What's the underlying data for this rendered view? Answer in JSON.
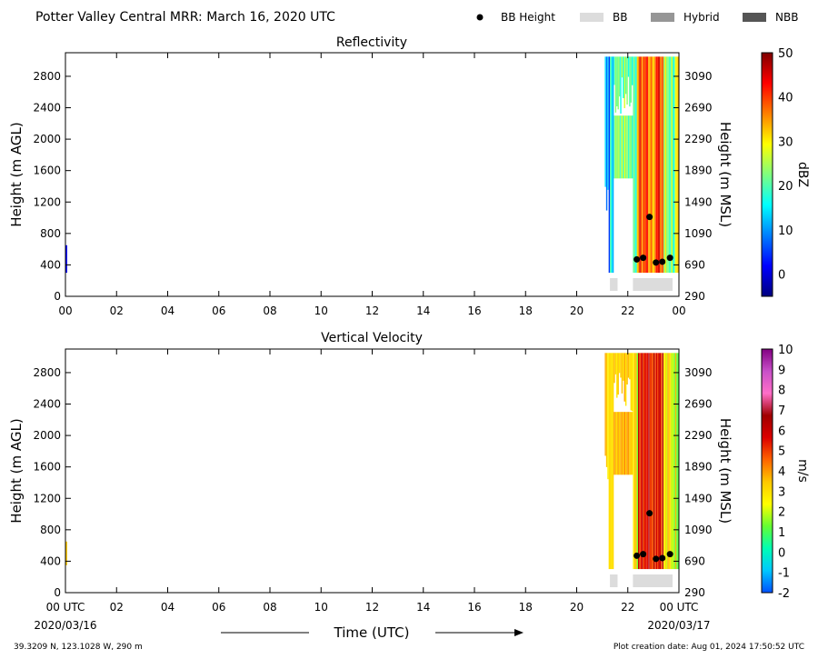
{
  "title": "Potter Valley Central MRR:  March 16, 2020 UTC",
  "legend": [
    {
      "name": "BB Height",
      "kind": "dot",
      "color": "#000000"
    },
    {
      "name": "BB",
      "kind": "box",
      "color": "#dcdcdc"
    },
    {
      "name": "Hybrid",
      "kind": "box",
      "color": "#969696"
    },
    {
      "name": "NBB",
      "kind": "box",
      "color": "#555555"
    }
  ],
  "footer": {
    "location": "39.3209 N, 123.1028 W, 290 m",
    "creation": "Plot creation date: Aug 01, 2024 17:50:52 UTC",
    "xlabel": "Time (UTC)",
    "start_date": "2020/03/16",
    "end_date": "2020/03/17"
  },
  "chart_data": [
    {
      "type": "heatmap",
      "title": "Reflectivity",
      "ylabel": "Height (m AGL)",
      "y2label": "Height (m MSL)",
      "xlim": [
        0,
        24
      ],
      "ylim": [
        0,
        3100
      ],
      "x_ticks": [
        "00",
        "02",
        "04",
        "06",
        "08",
        "10",
        "12",
        "14",
        "16",
        "18",
        "20",
        "22",
        "00"
      ],
      "x_ticks_last_label": "00",
      "y_ticks": [
        0,
        400,
        800,
        1200,
        1600,
        2000,
        2400,
        2800
      ],
      "y2_ticks": [
        290,
        690,
        1090,
        1490,
        1890,
        2290,
        2690,
        3090
      ],
      "colorbar": {
        "label": "dBZ",
        "range": [
          -5,
          50
        ],
        "ticks": [
          0,
          10,
          20,
          30,
          40,
          50
        ],
        "colors": [
          "#00007f",
          "#0000ff",
          "#007fff",
          "#00ffff",
          "#7fff7f",
          "#ffff00",
          "#ff7f00",
          "#ff0000",
          "#7f0000"
        ]
      },
      "bb_height_points": [
        {
          "time": 22.35,
          "height": 470
        },
        {
          "time": 22.6,
          "height": 490
        },
        {
          "time": 22.85,
          "height": 1010
        },
        {
          "time": 23.1,
          "height": 430
        },
        {
          "time": 23.35,
          "height": 440
        },
        {
          "time": 23.65,
          "height": 490
        }
      ],
      "bb_segments": [
        {
          "start": 21.3,
          "end": 21.6,
          "class": "BB"
        },
        {
          "start": 22.2,
          "end": 23.75,
          "class": "BB"
        }
      ]
    },
    {
      "type": "heatmap",
      "title": "Vertical Velocity",
      "ylabel": "Height (m AGL)",
      "y2label": "Height (m MSL)",
      "xlim": [
        0,
        24
      ],
      "ylim": [
        0,
        3100
      ],
      "x_ticks": [
        "00 UTC",
        "02",
        "04",
        "06",
        "08",
        "10",
        "12",
        "14",
        "16",
        "18",
        "20",
        "22",
        "00 UTC"
      ],
      "y_ticks": [
        0,
        400,
        800,
        1200,
        1600,
        2000,
        2400,
        2800
      ],
      "y2_ticks": [
        290,
        690,
        1090,
        1490,
        1890,
        2290,
        2690,
        3090
      ],
      "colorbar": {
        "label": "m/s",
        "range": [
          -2,
          10
        ],
        "ticks": [
          -2,
          -1,
          0,
          1,
          2,
          3,
          4,
          5,
          6,
          7,
          8,
          9,
          10
        ],
        "colors": [
          "#0050ff",
          "#00c8ff",
          "#00ffb4",
          "#64ff32",
          "#ffff00",
          "#ffc800",
          "#ff6400",
          "#dc0000",
          "#a00000",
          "#ff6ec8",
          "#c850c8",
          "#820082"
        ]
      },
      "bb_height_points": [
        {
          "time": 22.35,
          "height": 470
        },
        {
          "time": 22.6,
          "height": 490
        },
        {
          "time": 22.85,
          "height": 1010
        },
        {
          "time": 23.1,
          "height": 430
        },
        {
          "time": 23.35,
          "height": 440
        },
        {
          "time": 23.65,
          "height": 490
        }
      ],
      "bb_segments": [
        {
          "start": 21.3,
          "end": 21.6,
          "class": "BB"
        },
        {
          "start": 22.2,
          "end": 23.75,
          "class": "BB"
        }
      ]
    }
  ]
}
